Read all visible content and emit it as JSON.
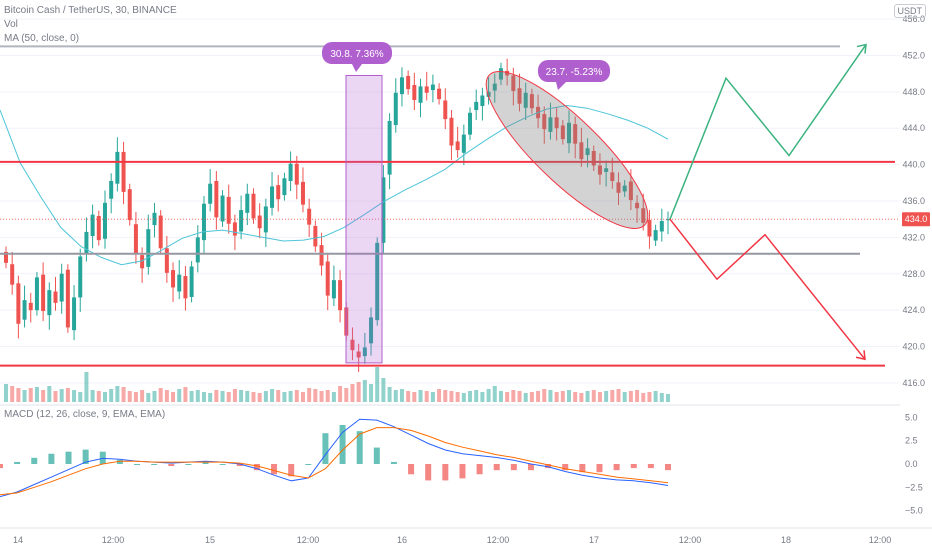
{
  "legend": {
    "symbol": "Bitcoin Cash / TetherUS, 30, BINANCE",
    "volume": "Vol",
    "ma": "MA (50, close, 0)",
    "macd": "MACD (12, 26, close, 9, EMA, EMA)"
  },
  "unit_label": "USDT",
  "colors": {
    "up": "#26a69a",
    "down": "#ef5350",
    "ma": "#4dc4d8",
    "macd_line": "#2962ff",
    "signal_line": "#ff6d00",
    "resistance": "#f23645",
    "support_gray": "#9598a1",
    "top_gray": "#b2b5be",
    "highlight_purple": "#b05fce",
    "forecast_green": "#3bb37f",
    "forecast_red": "#f23645"
  },
  "chart_data": {
    "type": "candlestick",
    "price_axis": {
      "ticks": [
        "456.0",
        "452.0",
        "448.0",
        "444.0",
        "440.0",
        "436.0",
        "432.0",
        "428.0",
        "424.0",
        "420.0",
        "416.0"
      ],
      "range": [
        415,
        457
      ],
      "last_price_label": "434.0",
      "last_price": 434.0
    },
    "macd_axis": {
      "ticks": [
        "5.0",
        "2.5",
        "0.0",
        "−2.5",
        "−5.0"
      ],
      "range": [
        -6.0,
        6.0
      ]
    },
    "time_axis": [
      "14",
      "12:00",
      "15",
      "12:00",
      "16",
      "12:00",
      "17",
      "12:00",
      "18",
      "12:00"
    ],
    "ohlc_closes": [
      429.2,
      426.8,
      422.5,
      425.1,
      424.0,
      427.6,
      423.9,
      426.2,
      424.8,
      428.0,
      422.1,
      425.4,
      429.9,
      432.6,
      434.5,
      431.7,
      435.8,
      438.2,
      441.4,
      437.0,
      433.9,
      430.2,
      428.6,
      432.9,
      434.7,
      430.8,
      428.1,
      426.5,
      427.9,
      425.3,
      428.8,
      432.0,
      435.7,
      437.9,
      434.2,
      436.6,
      433.5,
      432.2,
      435.0,
      436.8,
      434.1,
      433.0,
      435.4,
      437.6,
      436.2,
      438.5,
      440.1,
      437.8,
      435.6,
      433.4,
      431.0,
      428.9,
      425.6,
      427.3,
      424.0,
      421.2,
      419.6,
      418.8,
      419.9,
      423.2,
      431.4,
      438.6,
      444.8,
      447.9,
      449.6,
      448.3,
      447.1,
      448.6,
      447.9,
      448.8,
      447.2,
      445.0,
      442.1,
      441.6,
      443.3,
      445.7,
      446.9,
      447.6,
      448.0,
      448.9,
      450.6,
      449.8,
      448.1,
      446.7,
      447.9,
      446.2,
      445.1,
      443.9,
      445.2,
      444.0,
      442.8,
      444.6,
      442.3,
      440.6,
      441.8,
      439.9,
      438.9,
      439.6,
      438.2,
      436.9,
      437.7,
      436.1,
      435.2,
      433.6,
      432.1,
      432.8,
      433.8,
      434.0
    ],
    "ma50": [
      446.0,
      440.2,
      436.5,
      433.1,
      431.0,
      429.8,
      429.0,
      429.4,
      430.6,
      431.9,
      432.6,
      432.8,
      432.4,
      432.0,
      431.6,
      431.7,
      432.1,
      433.1,
      434.5,
      436.0,
      437.2,
      438.3,
      439.5,
      441.2,
      442.7,
      444.1,
      445.2,
      446.1,
      446.5,
      446.2,
      445.6,
      444.9,
      444.0,
      442.8
    ],
    "volume": [
      18,
      16,
      14,
      12,
      14,
      15,
      12,
      16,
      11,
      13,
      14,
      12,
      10,
      30,
      12,
      11,
      10,
      13,
      16,
      15,
      11,
      10,
      12,
      9,
      11,
      14,
      12,
      10,
      13,
      15,
      11,
      12,
      10,
      9,
      12,
      11,
      10,
      13,
      12,
      11,
      10,
      9,
      11,
      13,
      12,
      10,
      11,
      12,
      10,
      14,
      13,
      11,
      12,
      10,
      16,
      14,
      18,
      20,
      22,
      18,
      35,
      24,
      15,
      12,
      13,
      11,
      10,
      12,
      11,
      10,
      13,
      12,
      11,
      10,
      9,
      11,
      12,
      10,
      13,
      16,
      11,
      10,
      12,
      11,
      9,
      10,
      11,
      13,
      12,
      10,
      11,
      12,
      10,
      9,
      11,
      12,
      10,
      11,
      12,
      13,
      10,
      11,
      12,
      9,
      10,
      11,
      9,
      8
    ],
    "macd_line": [
      -3.5,
      -3.0,
      -2.2,
      -1.4,
      -0.6,
      0.2,
      0.6,
      0.5,
      0.3,
      0.2,
      0.1,
      0.2,
      0.3,
      0.2,
      0.0,
      -0.5,
      -1.2,
      -1.8,
      -1.5,
      1.0,
      3.4,
      4.8,
      4.7,
      4.0,
      3.1,
      2.2,
      1.5,
      1.1,
      0.9,
      0.7,
      0.4,
      0.0,
      -0.3,
      -0.8,
      -1.2,
      -1.5,
      -1.7,
      -1.8,
      -2.0,
      -2.3
    ],
    "signal_line": [
      -3.3,
      -3.1,
      -2.5,
      -1.9,
      -1.2,
      -0.5,
      0.0,
      0.3,
      0.3,
      0.2,
      0.2,
      0.2,
      0.2,
      0.2,
      0.1,
      -0.2,
      -0.7,
      -1.2,
      -1.5,
      -0.5,
      1.5,
      3.2,
      3.9,
      3.9,
      3.6,
      3.0,
      2.3,
      1.8,
      1.4,
      1.0,
      0.7,
      0.3,
      -0.1,
      -0.5,
      -0.8,
      -1.1,
      -1.4,
      -1.6,
      -1.8,
      -2.0
    ],
    "annotations": {
      "pump_label": "30.8. 7.36%",
      "dump_label": "23.7. -5.23%"
    },
    "levels": {
      "top_gray": 453.0,
      "resistance": 440.3,
      "mid_gray": 430.2,
      "support": 417.9
    },
    "forecast_green": [
      [
        434.0,
        0
      ],
      [
        449.5,
        1
      ],
      [
        441.0,
        2
      ],
      [
        453.2,
        3
      ]
    ],
    "forecast_red": [
      [
        434.0,
        0
      ],
      [
        427.4,
        1
      ],
      [
        432.3,
        2
      ],
      [
        418.6,
        3
      ]
    ]
  }
}
